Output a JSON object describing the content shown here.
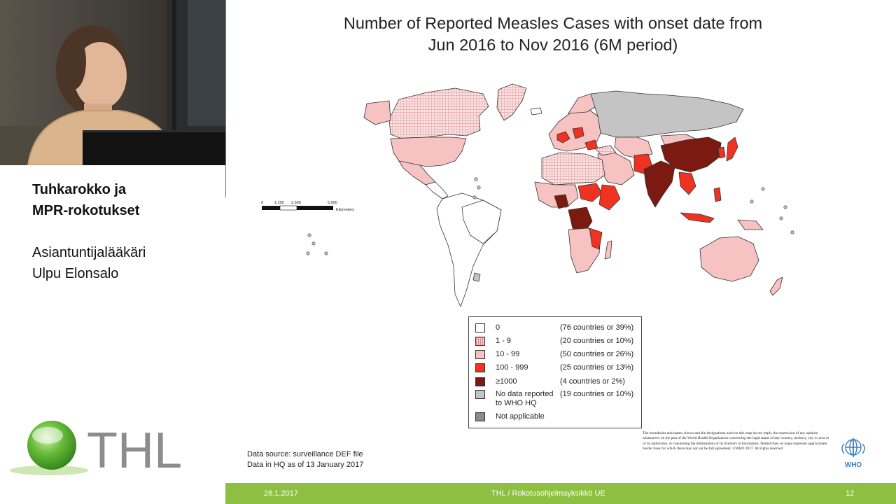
{
  "sidebar": {
    "title_line1": "Tuhkarokko ja",
    "title_line2": "MPR-rokotukset",
    "role": "Asiantuntijalääkäri",
    "name": "Ulpu Elonsalo",
    "logo_text": "THL"
  },
  "slide": {
    "title_line1": "Number of Reported Measles Cases with onset date from",
    "title_line2": "Jun 2016 to Nov 2016 (6M period)",
    "scale_bar": {
      "ticks": [
        "0",
        "1,250",
        "2,500",
        "5,000"
      ],
      "unit": "Kilometers"
    },
    "legend": [
      {
        "label": "0",
        "count": "(76 countries or 39%)",
        "pattern": "none",
        "color": "#ffffff"
      },
      {
        "label": "1 - 9",
        "count": "(20 countries or 10%)",
        "pattern": "grid",
        "color": "#f6c9c9"
      },
      {
        "label": "10 - 99",
        "count": "(50 countries or 26%)",
        "pattern": "none",
        "color": "#f7c2c2"
      },
      {
        "label": "100 - 999",
        "count": "(25 countries or 13%)",
        "pattern": "none",
        "color": "#ee3322"
      },
      {
        "label": "≥1000",
        "count": "(4 countries or 2%)",
        "pattern": "none",
        "color": "#7a1a10"
      },
      {
        "label": "No data reported to WHO HQ",
        "count": "(19 countries or 10%)",
        "pattern": "none",
        "color": "#c4c4c4"
      },
      {
        "label": "Not applicable",
        "count": "",
        "pattern": "none",
        "color": "#8a8a8a"
      }
    ],
    "data_source_line1": "Data source: surveillance DEF file",
    "data_source_line2": "Data in HQ as of 13 January 2017",
    "disclaimer": "The boundaries and names shown and the designations used on this map do not imply the expression of any opinion whatsoever on the part of the World Health Organization concerning the legal status of any country, territory, city or area or of its authorities, or concerning the delimitation of its frontiers or boundaries. Dotted lines on maps represent approximate border lines for which there may not yet be full agreement. ©WHO 2017. All rights reserved.",
    "who_label": "WHO"
  },
  "footer": {
    "date": "26.1.2017",
    "center": "THL / Rokotusohjelmayksikkö UE",
    "page": "12"
  },
  "colors": {
    "footer_bar": "#8dbf42",
    "thl_green": "#5aa832",
    "thl_gray": "#8c8c8c",
    "who_blue": "#3a7ec2"
  }
}
